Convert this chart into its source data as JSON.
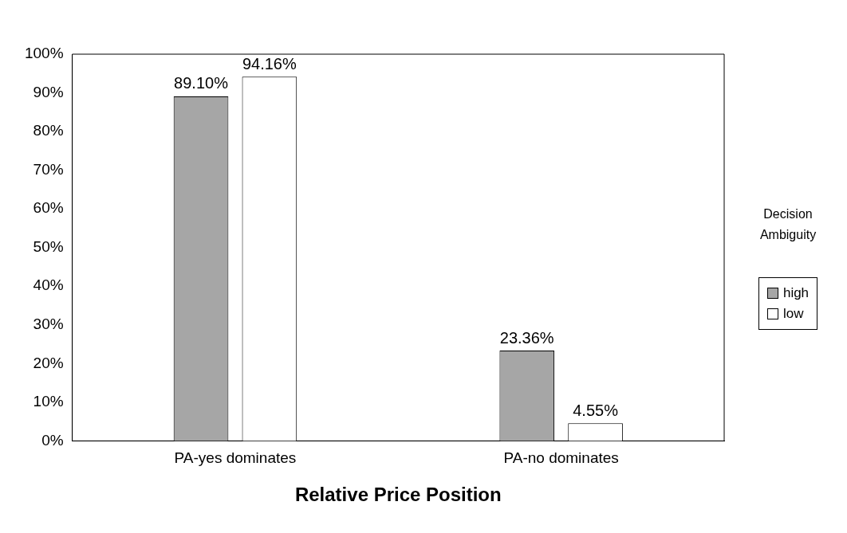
{
  "chart_data": {
    "type": "bar",
    "xlabel": "Relative Price Position",
    "legend_title": "Decision Ambiguity",
    "categories": [
      "PA-yes dominates",
      "PA-no dominates"
    ],
    "series": [
      {
        "name": "high",
        "color": "#a6a6a6",
        "values": [
          89.1,
          23.36
        ],
        "value_labels": [
          "89.10%",
          "23.36%"
        ]
      },
      {
        "name": "low",
        "color": "#ffffff",
        "values": [
          94.16,
          4.55
        ],
        "value_labels": [
          "94.16%",
          "4.55%"
        ]
      }
    ],
    "ylim": [
      0,
      100
    ],
    "yticks": [
      {
        "value": 0,
        "label": "0%"
      },
      {
        "value": 10,
        "label": "10%"
      },
      {
        "value": 20,
        "label": "20%"
      },
      {
        "value": 30,
        "label": "30%"
      },
      {
        "value": 40,
        "label": "40%"
      },
      {
        "value": 50,
        "label": "50%"
      },
      {
        "value": 60,
        "label": "60%"
      },
      {
        "value": 70,
        "label": "70%"
      },
      {
        "value": 80,
        "label": "80%"
      },
      {
        "value": 90,
        "label": "90%"
      },
      {
        "value": 100,
        "label": "100%"
      }
    ],
    "grid": false,
    "legend": "right"
  }
}
